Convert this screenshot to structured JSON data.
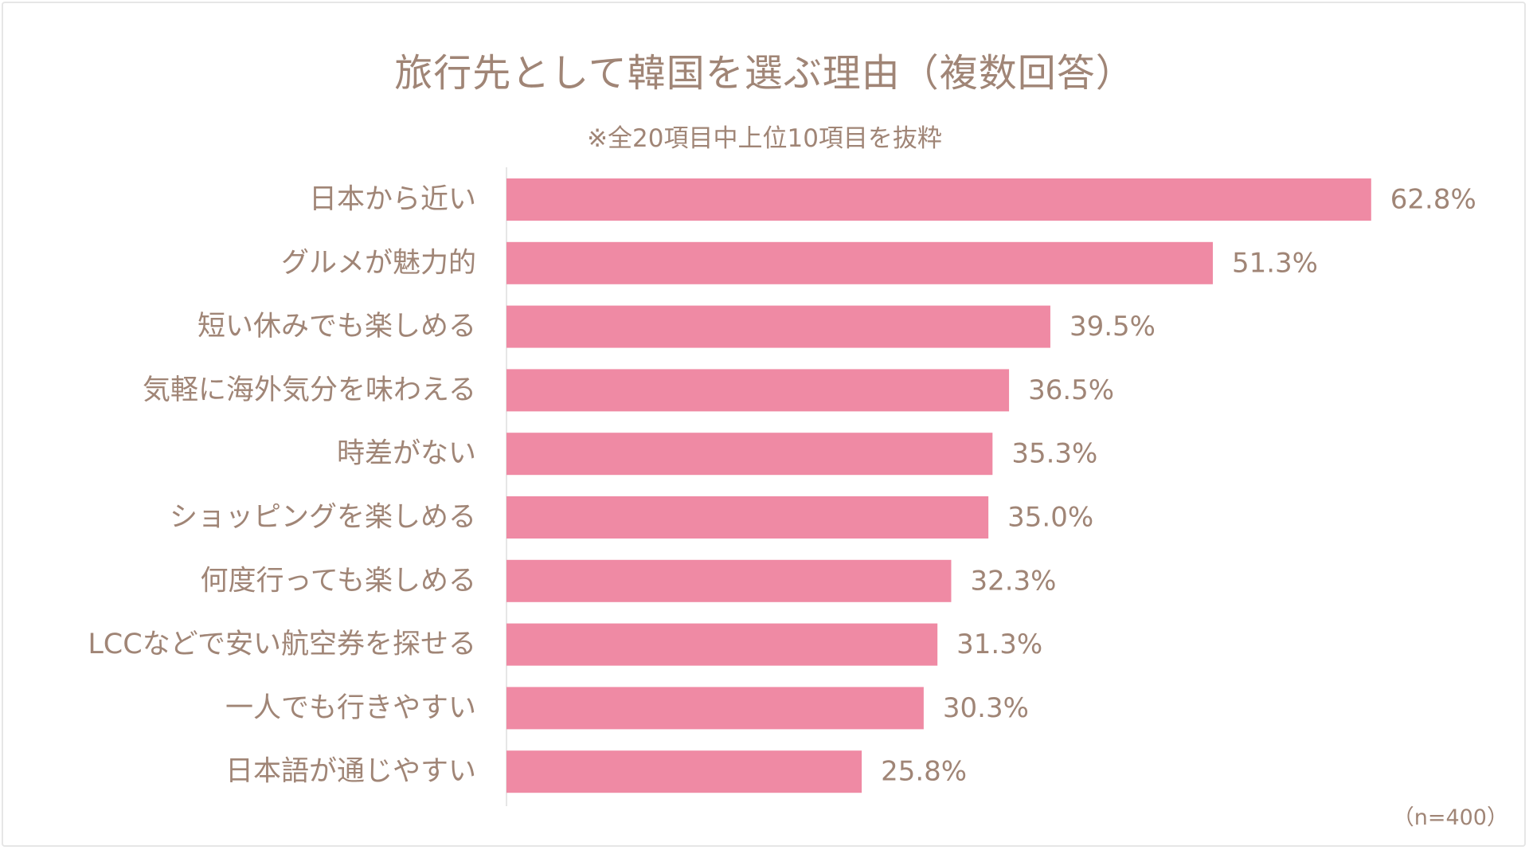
{
  "chart_data": {
    "type": "bar",
    "orientation": "horizontal",
    "title": "旅行先として韓国を選ぶ理由（複数回答）",
    "subtitle": "※全20項目中上位10項目を抜粋",
    "note": "（n=400）",
    "categories": [
      "日本から近い",
      "グルメが魅力的",
      "短い休みでも楽しめる",
      "気軽に海外気分を味わえる",
      "時差がない",
      "ショッピングを楽しめる",
      "何度行っても楽しめる",
      "LCCなどで安い航空券を探せる",
      "一人でも行きやすい",
      "日本語が通じやすい"
    ],
    "values": [
      62.8,
      51.3,
      39.5,
      36.5,
      35.3,
      35.0,
      32.3,
      31.3,
      30.3,
      25.8
    ],
    "value_labels": [
      "62.8%",
      "51.3%",
      "39.5%",
      "36.5%",
      "35.3%",
      "35.0%",
      "32.3%",
      "31.3%",
      "30.3%",
      "25.8%"
    ],
    "unit": "%",
    "xlim": [
      0,
      70
    ],
    "grid": false,
    "legend": "none",
    "bar_color": "#ef8aa4",
    "text_color": "#a08576",
    "axis_color": "#e6e6e6"
  }
}
